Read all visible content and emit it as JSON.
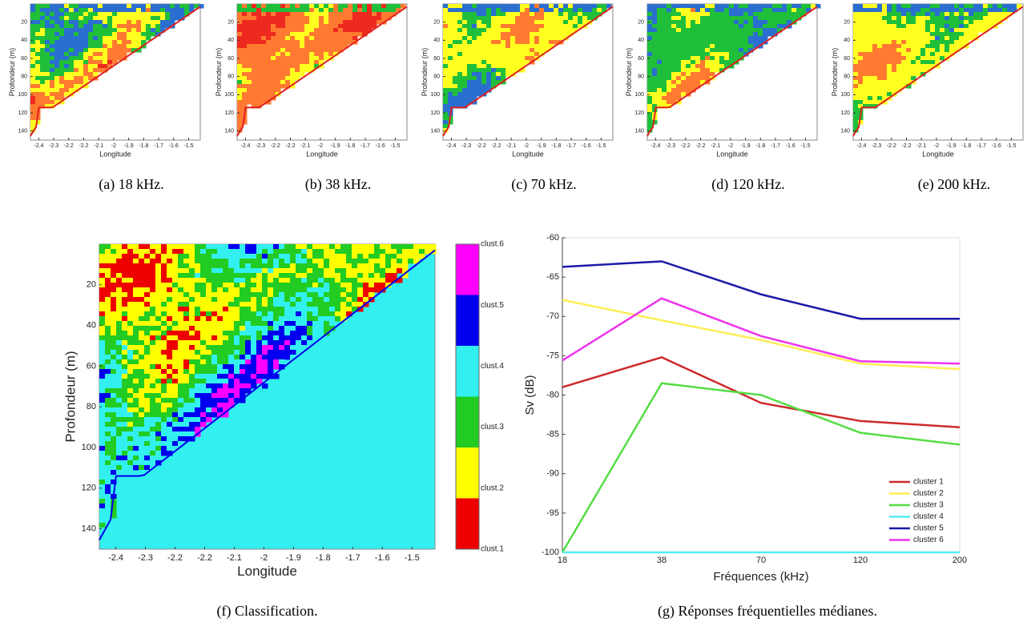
{
  "chart_data": [
    {
      "type": "echogram",
      "caption": "(a) 18 kHz.",
      "xlabel": "Longitude",
      "ylabel": "Profondeur (m)",
      "y_inverted": true,
      "seed": 11,
      "palette": [
        "#2a6fd0",
        "#1fbf3a",
        "#ffff20",
        "#ff7a30",
        "#ee2a20"
      ],
      "xlim": [
        -2.47,
        -1.45
      ],
      "ylim": [
        0,
        150
      ],
      "xticks": [
        {
          "value": -2.42,
          "label": "-2.4"
        },
        {
          "value": -2.33,
          "label": "-2.3"
        },
        {
          "value": -2.24,
          "label": "-2.2"
        },
        {
          "value": -2.15,
          "label": "-2.2"
        },
        {
          "value": -2.06,
          "label": "-2.1"
        },
        {
          "value": -1.97,
          "label": "-2"
        },
        {
          "value": -1.88,
          "label": "-1.9"
        },
        {
          "value": -1.79,
          "label": "-1.8"
        },
        {
          "value": -1.7,
          "label": "-1.7"
        },
        {
          "value": -1.61,
          "label": "-1.6"
        },
        {
          "value": -1.52,
          "label": "-1.5"
        }
      ],
      "yticks": [
        20,
        40,
        60,
        80,
        100,
        120,
        140
      ]
    },
    {
      "type": "echogram",
      "caption": "(b) 38 kHz.",
      "xlabel": "Longitude",
      "ylabel": "Profondeur (m)",
      "y_inverted": true,
      "seed": 23,
      "palette": [
        "#1fbf3a",
        "#ffff20",
        "#ff7a30",
        "#ff7a30",
        "#ee2a20"
      ],
      "xlim": [
        -2.47,
        -1.45
      ],
      "ylim": [
        0,
        150
      ],
      "xticks": [
        {
          "value": -2.42,
          "label": "-2.4"
        },
        {
          "value": -2.33,
          "label": "-2.3"
        },
        {
          "value": -2.24,
          "label": "-2.2"
        },
        {
          "value": -2.15,
          "label": "-2.2"
        },
        {
          "value": -2.06,
          "label": "-2.1"
        },
        {
          "value": -1.97,
          "label": "-2"
        },
        {
          "value": -1.88,
          "label": "-1.9"
        },
        {
          "value": -1.79,
          "label": "-1.8"
        },
        {
          "value": -1.7,
          "label": "-1.7"
        },
        {
          "value": -1.61,
          "label": "-1.6"
        },
        {
          "value": -1.52,
          "label": "-1.5"
        }
      ],
      "yticks": [
        20,
        40,
        60,
        80,
        100,
        120,
        140
      ]
    },
    {
      "type": "echogram",
      "caption": "(c) 70 kHz.",
      "xlabel": "Longitude",
      "ylabel": "Profondeur (m)",
      "y_inverted": true,
      "seed": 37,
      "palette": [
        "#2a6fd0",
        "#1fbf3a",
        "#ffff20",
        "#ffff20",
        "#ff7a30"
      ],
      "xlim": [
        -2.47,
        -1.45
      ],
      "ylim": [
        0,
        150
      ],
      "xticks": [
        {
          "value": -2.42,
          "label": "-2.4"
        },
        {
          "value": -2.33,
          "label": "-2.3"
        },
        {
          "value": -2.24,
          "label": "-2.2"
        },
        {
          "value": -2.15,
          "label": "-2.2"
        },
        {
          "value": -2.06,
          "label": "-2.1"
        },
        {
          "value": -1.97,
          "label": "-2"
        },
        {
          "value": -1.88,
          "label": "-1.9"
        },
        {
          "value": -1.79,
          "label": "-1.8"
        },
        {
          "value": -1.7,
          "label": "-1.7"
        },
        {
          "value": -1.61,
          "label": "-1.6"
        },
        {
          "value": -1.52,
          "label": "-1.5"
        }
      ],
      "yticks": [
        20,
        40,
        60,
        80,
        100,
        120,
        140
      ]
    },
    {
      "type": "echogram",
      "caption": "(d) 120 kHz.",
      "xlabel": "Longitude",
      "ylabel": "Profondeur (m)",
      "y_inverted": true,
      "seed": 41,
      "palette": [
        "#2a6fd0",
        "#1fbf3a",
        "#1fbf3a",
        "#ffff20",
        "#ff7a30"
      ],
      "xlim": [
        -2.47,
        -1.45
      ],
      "ylim": [
        0,
        150
      ],
      "xticks": [
        {
          "value": -2.42,
          "label": "-2.4"
        },
        {
          "value": -2.33,
          "label": "-2.3"
        },
        {
          "value": -2.24,
          "label": "-2.2"
        },
        {
          "value": -2.15,
          "label": "-2.2"
        },
        {
          "value": -2.06,
          "label": "-2.1"
        },
        {
          "value": -1.97,
          "label": "-2"
        },
        {
          "value": -1.88,
          "label": "-1.9"
        },
        {
          "value": -1.79,
          "label": "-1.8"
        },
        {
          "value": -1.7,
          "label": "-1.7"
        },
        {
          "value": -1.61,
          "label": "-1.6"
        },
        {
          "value": -1.52,
          "label": "-1.5"
        }
      ],
      "yticks": [
        20,
        40,
        60,
        80,
        100,
        120,
        140
      ]
    },
    {
      "type": "echogram",
      "caption": "(e) 200 kHz.",
      "xlabel": "Longitude",
      "ylabel": "Profondeur (m)",
      "y_inverted": true,
      "seed": 53,
      "palette": [
        "#2a6fd0",
        "#1fbf3a",
        "#ffff20",
        "#ffff20",
        "#ff7a30"
      ],
      "xlim": [
        -2.47,
        -1.45
      ],
      "ylim": [
        0,
        150
      ],
      "xticks": [
        {
          "value": -2.42,
          "label": "-2.4"
        },
        {
          "value": -2.33,
          "label": "-2.3"
        },
        {
          "value": -2.24,
          "label": "-2.2"
        },
        {
          "value": -2.15,
          "label": "-2.2"
        },
        {
          "value": -2.06,
          "label": "-2.1"
        },
        {
          "value": -1.97,
          "label": "-2"
        },
        {
          "value": -1.88,
          "label": "-1.9"
        },
        {
          "value": -1.79,
          "label": "-1.8"
        },
        {
          "value": -1.7,
          "label": "-1.7"
        },
        {
          "value": -1.61,
          "label": "-1.6"
        },
        {
          "value": -1.52,
          "label": "-1.5"
        }
      ],
      "yticks": [
        20,
        40,
        60,
        80,
        100,
        120,
        140
      ]
    },
    {
      "type": "classification",
      "caption": "(f) Classification.",
      "xlabel": "Longitude",
      "ylabel": "Profondeur (m)",
      "y_inverted": true,
      "seed": 7,
      "seabed_color": "#33f0f0",
      "colorbar": [
        {
          "label": "clust.6",
          "color": "#ff00ff"
        },
        {
          "label": "clust.5",
          "color": "#0000ee"
        },
        {
          "label": "clust.4",
          "color": "#33f0f0"
        },
        {
          "label": "clust.3",
          "color": "#22cc22"
        },
        {
          "label": "clust.2",
          "color": "#ffff00"
        },
        {
          "label": "clust.1",
          "color": "#ee0000"
        }
      ],
      "xlim": [
        -2.47,
        -1.45
      ],
      "ylim": [
        0,
        150
      ],
      "xticks": [
        {
          "value": -2.42,
          "label": "-2.4"
        },
        {
          "value": -2.33,
          "label": "-2.3"
        },
        {
          "value": -2.24,
          "label": "-2.2"
        },
        {
          "value": -2.15,
          "label": "-2.2"
        },
        {
          "value": -2.06,
          "label": "-2.1"
        },
        {
          "value": -1.97,
          "label": "-2"
        },
        {
          "value": -1.88,
          "label": "-1.9"
        },
        {
          "value": -1.79,
          "label": "-1.8"
        },
        {
          "value": -1.7,
          "label": "-1.7"
        },
        {
          "value": -1.61,
          "label": "-1.6"
        },
        {
          "value": -1.52,
          "label": "-1.5"
        }
      ],
      "yticks": [
        20,
        40,
        60,
        80,
        100,
        120,
        140
      ]
    },
    {
      "type": "line",
      "caption": "(g) Réponses fréquentielles médianes.",
      "xlabel": "Fréquences (kHz)",
      "ylabel": "Sv (dB)",
      "categories": [
        "18",
        "38",
        "70",
        "120",
        "200"
      ],
      "legend": "lower right",
      "ylim": [
        -100,
        -60
      ],
      "yticks": [
        -100,
        -95,
        -90,
        -85,
        -80,
        -75,
        -70,
        -65,
        -60
      ],
      "series": [
        {
          "name": "cluster 1",
          "color": "#cc2a2a",
          "values": [
            -79,
            -75.2,
            -81,
            -83.3,
            -84.1
          ]
        },
        {
          "name": "cluster 2",
          "color": "#ffee55",
          "values": [
            -67.9,
            -70.5,
            -73,
            -76,
            -76.7
          ]
        },
        {
          "name": "cluster 3",
          "color": "#55dd44",
          "values": [
            -100,
            -78.5,
            -80,
            -84.8,
            -86.3
          ]
        },
        {
          "name": "cluster 4",
          "color": "#55eeee",
          "values": [
            -100,
            -100,
            -100,
            -100,
            -100
          ]
        },
        {
          "name": "cluster 5",
          "color": "#1a1aa8",
          "values": [
            -63.7,
            -63,
            -67.2,
            -70.3,
            -70.3
          ]
        },
        {
          "name": "cluster 6",
          "color": "#ee33ee",
          "values": [
            -75.6,
            -67.7,
            -72.5,
            -75.7,
            -76
          ]
        }
      ]
    }
  ]
}
